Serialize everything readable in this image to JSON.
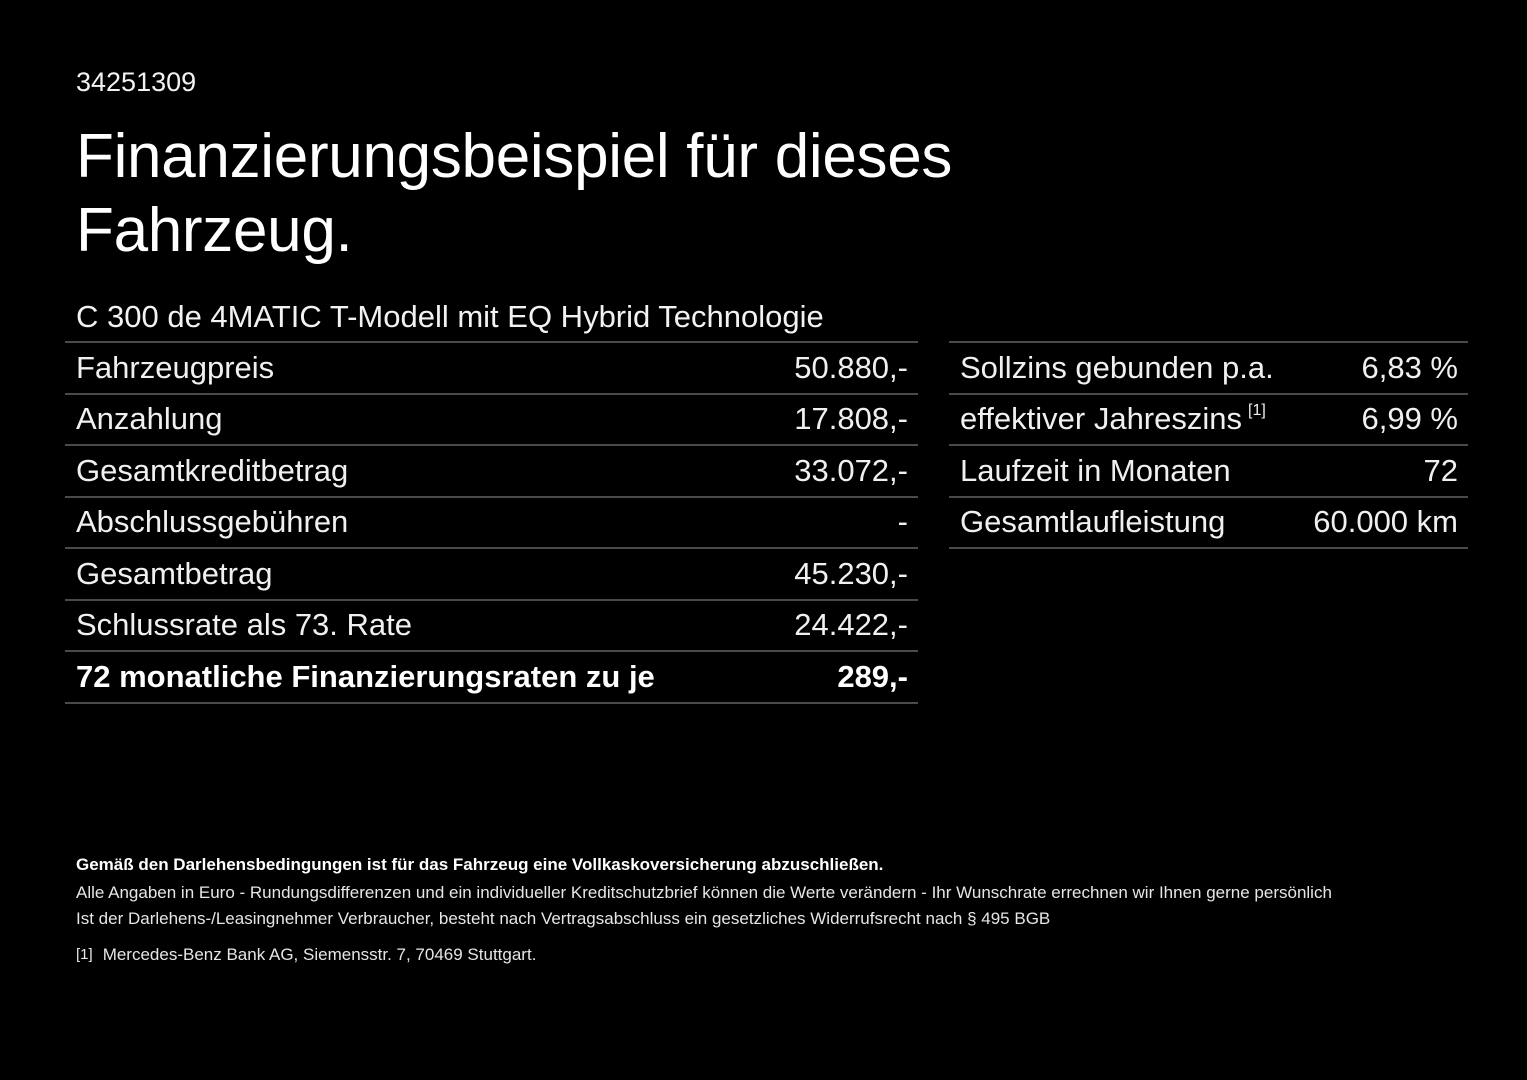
{
  "document": {
    "id": "34251309",
    "title": "Finanzierungsbeispiel für dieses Fahrzeug.",
    "model": "C 300 de 4MATIC T-Modell mit EQ Hybrid Technologie"
  },
  "financing_table": {
    "rows": [
      {
        "label": "Fahrzeugpreis",
        "value": "50.880,-"
      },
      {
        "label": "Anzahlung",
        "value": "17.808,-"
      },
      {
        "label": "Gesamtkreditbetrag",
        "value": "33.072,-"
      },
      {
        "label": "Abschlussgebühren",
        "value": "-"
      },
      {
        "label": "Gesamtbetrag",
        "value": "45.230,-"
      },
      {
        "label": "Schlussrate als 73. Rate",
        "value": "24.422,-"
      },
      {
        "label": "72 monatliche Finanzierungsraten zu je",
        "value": "289,-",
        "emphasis": true
      }
    ]
  },
  "terms_table": {
    "rows": [
      {
        "label": "Sollzins gebunden p.a.",
        "value": "6,83 %"
      },
      {
        "label": "effektiver Jahreszins",
        "footnote_ref": "[1]",
        "value": "6,99 %"
      },
      {
        "label": "Laufzeit in Monaten",
        "value": "72"
      },
      {
        "label": "Gesamtlaufleistung",
        "value": "60.000 km"
      }
    ]
  },
  "footer": {
    "insurance_notice": "Gemäß den Darlehensbedingungen ist für das Fahrzeug eine Vollkaskoversicherung abzuschließen.",
    "disclaimer_1": "Alle Angaben in Euro - Rundungsdifferenzen und ein individueller Kreditschutzbrief können die Werte verändern - Ihr Wunschrate errechnen wir Ihnen gerne persönlich",
    "disclaimer_2": "Ist der Darlehens-/Leasingnehmer Verbraucher, besteht nach Vertragsabschluss ein gesetzliches Widerrufsrecht nach § 495 BGB",
    "footnote_marker": "[1]",
    "footnote_text": "Mercedes-Benz Bank AG, Siemensstr. 7, 70469 Stuttgart."
  },
  "colors": {
    "background": "#000000",
    "text": "#ffffff",
    "divider": "#4a4a4a"
  }
}
